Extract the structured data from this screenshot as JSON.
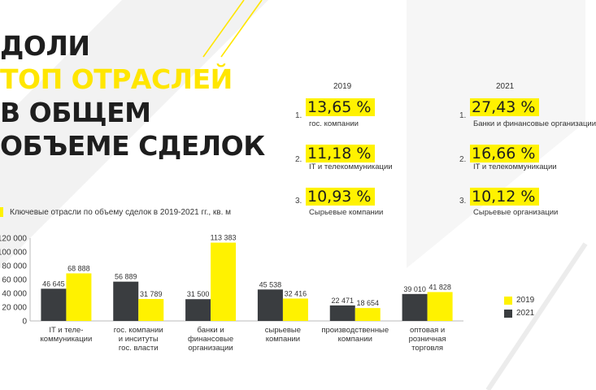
{
  "title": {
    "line1": "ДОЛИ",
    "line2": "ТОП ОТРАСЛЕЙ",
    "line3": "В ОБЩЕМ",
    "line4": "ОБЪЕМЕ СДЕЛОК"
  },
  "rankings": [
    {
      "year": "2019",
      "items": [
        {
          "rank": "1.",
          "share": "13,65 %",
          "label": "гос. компании"
        },
        {
          "rank": "2.",
          "share": "11,18 %",
          "label": "IT и телекоммуникации"
        },
        {
          "rank": "3.",
          "share": "10,93 %",
          "label": "Сырьевые компании"
        }
      ]
    },
    {
      "year": "2021",
      "items": [
        {
          "rank": "1.",
          "share": "27,43 %",
          "label": "Банки и финансовые организации"
        },
        {
          "rank": "2.",
          "share": "16,66 %",
          "label": "IT и телекоммуникации"
        },
        {
          "rank": "3.",
          "share": "10,12 %",
          "label": "Сырьевые организации"
        }
      ]
    }
  ],
  "caption": "Ключевые отрасли по объему сделок в 2019-2021 гг., кв. м",
  "colors": {
    "y2019": "#fff200",
    "y2021": "#3a3d40",
    "accent": "#ffe600"
  },
  "chart_data": {
    "type": "bar",
    "title": "Ключевые отрасли по объему сделок в 2019-2021 гг., кв. м",
    "categories": [
      "IT и теле-\nкоммуникации",
      "гос. компании\nи инситуты\nгос. власти",
      "банки и\nфинансовые\nорганизации",
      "сырьевые\nкомпании",
      "производственные\nкомпании",
      "оптовая и\nрозничная\nторговля"
    ],
    "series": [
      {
        "name": "2021",
        "values": [
          46645,
          56889,
          31500,
          45538,
          22471,
          39010
        ],
        "labels": [
          "46 645",
          "56 889",
          "31 500",
          "45 538",
          "22 471",
          "39 010"
        ]
      },
      {
        "name": "2019",
        "values": [
          68888,
          31789,
          113383,
          32416,
          18654,
          41828
        ],
        "labels": [
          "68 888",
          "31 789",
          "113 383",
          "32 416",
          "18 654",
          "41 828"
        ]
      }
    ],
    "yticks": [
      0,
      20000,
      40000,
      60000,
      80000,
      100000,
      120000
    ],
    "ytick_labels": [
      "0",
      "20 000",
      "40 000",
      "60 000",
      "80 000",
      "100 000",
      "120 000"
    ],
    "ylim": [
      0,
      120000
    ],
    "legend": [
      "2019",
      "2021"
    ],
    "legend_position": "right",
    "grid": false
  }
}
